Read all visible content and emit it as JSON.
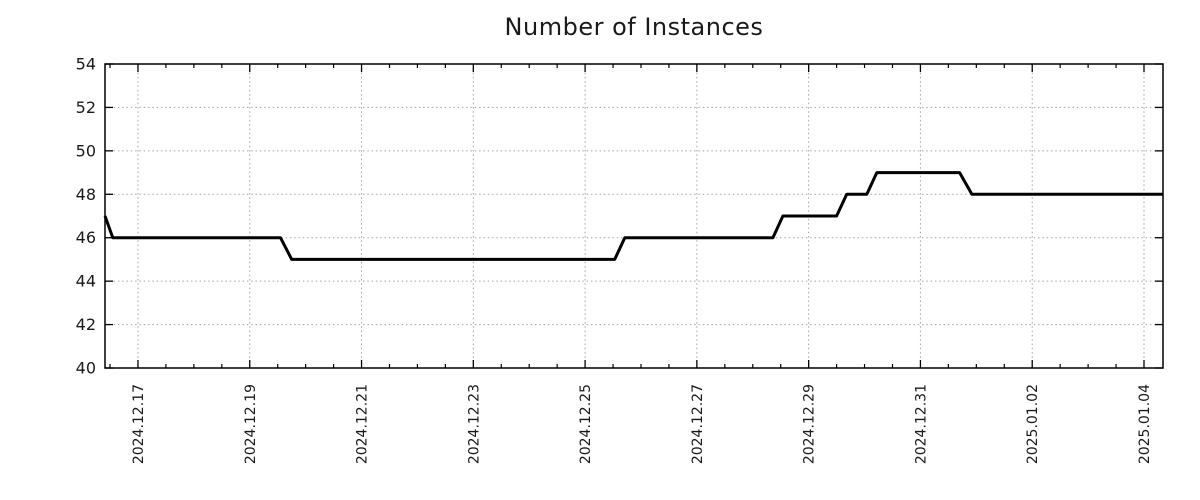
{
  "chart_data": {
    "type": "line",
    "title": "Number of Instances",
    "xlabel": "",
    "ylabel": "",
    "legend": "none",
    "grid": {
      "show": true,
      "style": "dotted",
      "color": "#a3a3a3"
    },
    "colors": {
      "line": "#000000",
      "axis": "#000000",
      "text": "#1a1a1a",
      "background": "#ffffff"
    },
    "y_axis": {
      "range": [
        40,
        54
      ],
      "ticks": [
        40,
        42,
        44,
        46,
        48,
        50,
        52,
        54
      ]
    },
    "x_axis": {
      "epoch": "days since 2024-12-16 00:00",
      "range_days": [
        0.41,
        19.34
      ],
      "minor_tick_interval_days": 0.5,
      "ticks": [
        {
          "t": 1,
          "label": "2024.12.17"
        },
        {
          "t": 3,
          "label": "2024.12.19"
        },
        {
          "t": 5,
          "label": "2024.12.21"
        },
        {
          "t": 7,
          "label": "2024.12.23"
        },
        {
          "t": 9,
          "label": "2024.12.25"
        },
        {
          "t": 11,
          "label": "2024.12.27"
        },
        {
          "t": 13,
          "label": "2024.12.29"
        },
        {
          "t": 15,
          "label": "2024.12.31"
        },
        {
          "t": 17,
          "label": "2025.01.02"
        },
        {
          "t": 19,
          "label": "2025.01.04"
        }
      ]
    },
    "series": [
      {
        "name": "instances",
        "color": "#000000",
        "width": 3,
        "points": [
          {
            "t": 0.41,
            "time": "2024-12-16 10:00",
            "value": 47
          },
          {
            "t": 0.55,
            "time": "2024-12-16 13:00",
            "value": 46
          },
          {
            "t": 3.55,
            "time": "2024-12-19 13:00",
            "value": 46
          },
          {
            "t": 3.75,
            "time": "2024-12-19 18:00",
            "value": 45
          },
          {
            "t": 9.53,
            "time": "2024-12-25 13:00",
            "value": 45
          },
          {
            "t": 9.71,
            "time": "2024-12-25 17:00",
            "value": 46
          },
          {
            "t": 12.36,
            "time": "2024-12-28 09:00",
            "value": 46
          },
          {
            "t": 12.54,
            "time": "2024-12-28 13:00",
            "value": 47
          },
          {
            "t": 13.5,
            "time": "2024-12-29 12:00",
            "value": 47
          },
          {
            "t": 13.68,
            "time": "2024-12-29 16:00",
            "value": 48
          },
          {
            "t": 14.04,
            "time": "2024-12-30 01:00",
            "value": 48
          },
          {
            "t": 14.22,
            "time": "2024-12-30 05:00",
            "value": 49
          },
          {
            "t": 15.7,
            "time": "2024-12-31 17:00",
            "value": 49
          },
          {
            "t": 15.92,
            "time": "2024-12-31 22:00",
            "value": 48
          },
          {
            "t": 19.34,
            "time": "2025-01-04 08:00",
            "value": 48
          }
        ]
      }
    ]
  }
}
